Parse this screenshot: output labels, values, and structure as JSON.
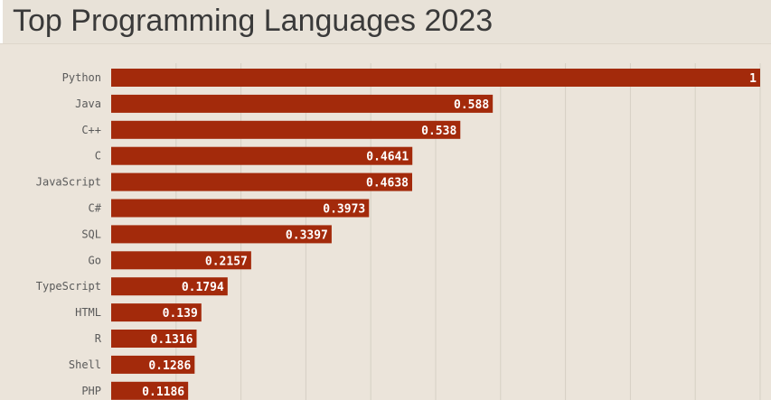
{
  "title": "Top Programming Languages 2023",
  "colors": {
    "background": "#ebe4da",
    "bar": "#a32a0b",
    "grid": "#d6cfc4",
    "title": "#3a3a3a"
  },
  "chart_data": {
    "type": "bar",
    "orientation": "horizontal",
    "title": "Top Programming Languages 2023",
    "categories": [
      "Python",
      "Java",
      "C++",
      "C",
      "JavaScript",
      "C#",
      "SQL",
      "Go",
      "TypeScript",
      "HTML",
      "R",
      "Shell",
      "PHP"
    ],
    "values": [
      1,
      0.588,
      0.538,
      0.4641,
      0.4638,
      0.3973,
      0.3397,
      0.2157,
      0.1794,
      0.139,
      0.1316,
      0.1286,
      0.1186
    ],
    "xlim": [
      0,
      1
    ],
    "grid": true,
    "data_labels": true
  }
}
